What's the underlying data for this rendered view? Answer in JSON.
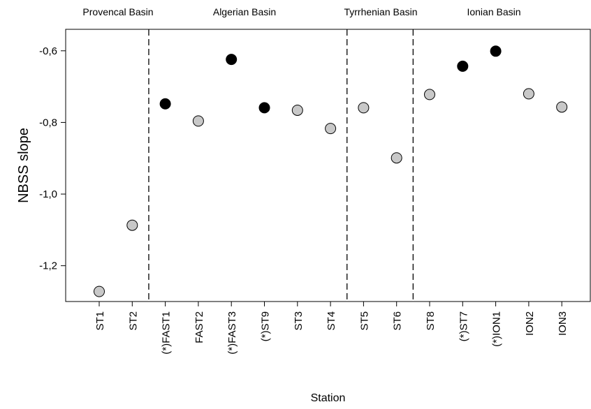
{
  "chart_data": {
    "type": "scatter",
    "title": "",
    "xlabel": "Station",
    "ylabel": "NBSS slope",
    "ylim": [
      -1.3,
      -0.54
    ],
    "yticks": [
      -1.2,
      -1.0,
      -0.8,
      -0.6
    ],
    "ytick_labels": [
      "-1,2",
      "-1,0",
      "-0,8",
      "-0,6"
    ],
    "grid": false,
    "categories": [
      "ST1",
      "ST2",
      "(*)FAST1",
      "FAST2",
      "(*)FAST3",
      "(*)ST9",
      "ST3",
      "ST4",
      "ST5",
      "ST6",
      "ST8",
      "(*)ST7",
      "(*)ION1",
      "ION2",
      "ION3"
    ],
    "values": [
      -1.272,
      -1.087,
      -0.748,
      -0.796,
      -0.624,
      -0.759,
      -0.766,
      -0.817,
      -0.759,
      -0.899,
      -0.722,
      -0.643,
      -0.601,
      -0.72,
      -0.757
    ],
    "marked": [
      false,
      false,
      true,
      false,
      true,
      true,
      false,
      false,
      false,
      false,
      false,
      true,
      true,
      false,
      false
    ],
    "marker_colors": {
      "filled": "#000000",
      "open": "#c8c8c8"
    },
    "basins": [
      {
        "name": "Provencal Basin"
      },
      {
        "name": "Algerian Basin"
      },
      {
        "name": "Tyrrhenian Basin"
      },
      {
        "name": "Ionian Basin"
      }
    ],
    "dividers_after_index": [
      1,
      7,
      9
    ]
  }
}
